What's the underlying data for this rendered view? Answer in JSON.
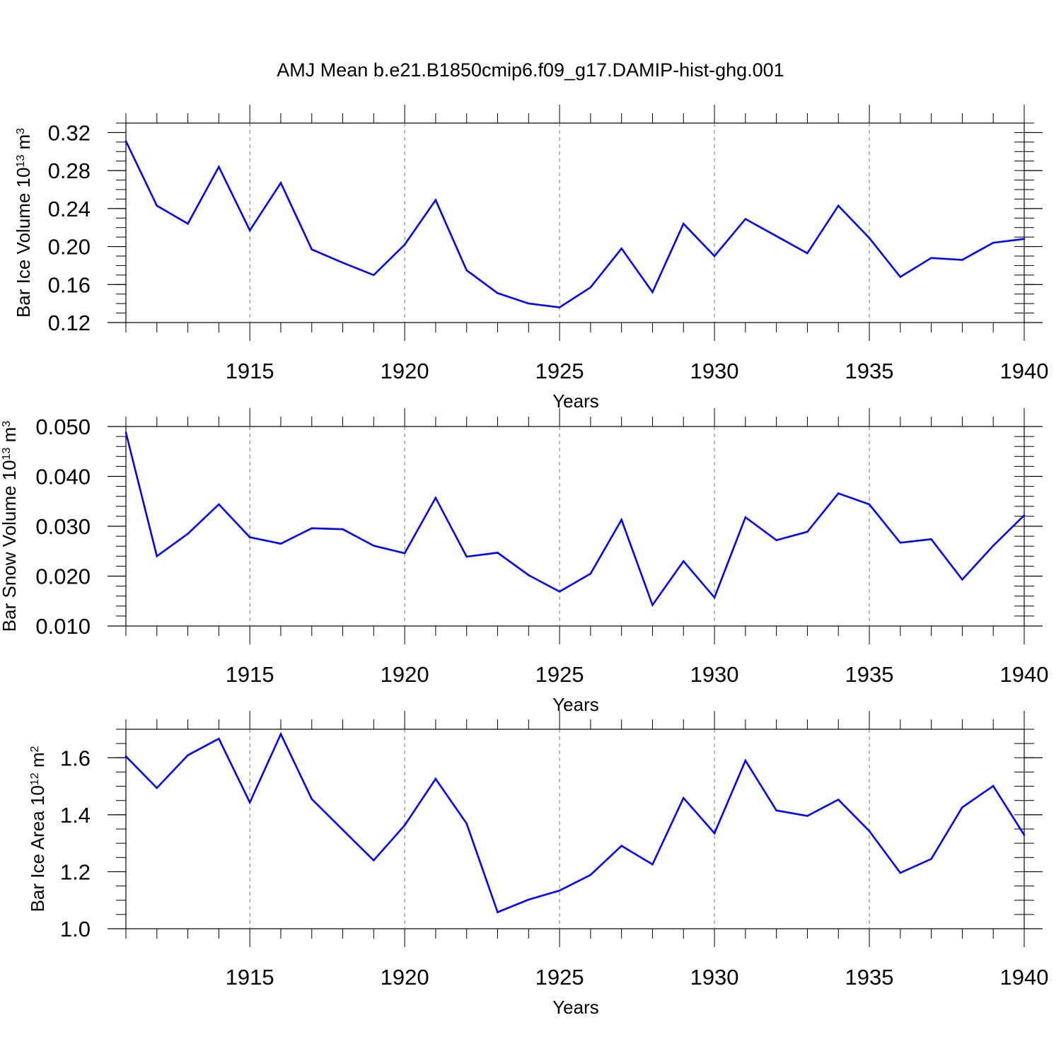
{
  "title": "AMJ Mean b.e21.B1850cmip6.f09_g17.DAMIP-hist-ghg.001",
  "line_color": "#0000ff",
  "chart_data": [
    {
      "type": "line",
      "xlabel": "Years",
      "ylabel": {
        "base": "Bar Ice Volume 10",
        "exp1": "13",
        "mid": " m",
        "exp2": "3"
      },
      "xlim": [
        1911,
        1940
      ],
      "ylim": [
        0.12,
        0.33
      ],
      "xticks": [
        1915,
        1920,
        1925,
        1930,
        1935,
        1940
      ],
      "xtick_labels": [
        "1915",
        "1920",
        "1925",
        "1930",
        "1935",
        "1940"
      ],
      "yticks": [
        0.12,
        0.16,
        0.2,
        0.24,
        0.28,
        0.32
      ],
      "ytick_labels": [
        "0.12",
        "0.16",
        "0.20",
        "0.24",
        "0.28",
        "0.32"
      ],
      "y_minor_step": 0.01,
      "grid": "dashed vertical at major x ticks",
      "x": [
        1911,
        1912,
        1913,
        1914,
        1915,
        1916,
        1917,
        1918,
        1919,
        1920,
        1921,
        1922,
        1923,
        1924,
        1925,
        1926,
        1927,
        1928,
        1929,
        1930,
        1931,
        1932,
        1933,
        1934,
        1935,
        1936,
        1937,
        1938,
        1939,
        1940
      ],
      "values": [
        0.311,
        0.243,
        0.224,
        0.284,
        0.217,
        0.267,
        0.197,
        0.183,
        0.17,
        0.202,
        0.249,
        0.175,
        0.151,
        0.14,
        0.136,
        0.157,
        0.198,
        0.152,
        0.224,
        0.19,
        0.229,
        0.211,
        0.193,
        0.243,
        0.209,
        0.168,
        0.188,
        0.186,
        0.204,
        0.208
      ]
    },
    {
      "type": "line",
      "xlabel": "Years",
      "ylabel": {
        "base": "Bar Snow Volume 10",
        "exp1": "13",
        "mid": " m",
        "exp2": "3"
      },
      "xlim": [
        1911,
        1940
      ],
      "ylim": [
        0.01,
        0.05
      ],
      "xticks": [
        1915,
        1920,
        1925,
        1930,
        1935,
        1940
      ],
      "xtick_labels": [
        "1915",
        "1920",
        "1925",
        "1930",
        "1935",
        "1940"
      ],
      "yticks": [
        0.01,
        0.02,
        0.03,
        0.04,
        0.05
      ],
      "ytick_labels": [
        "0.010",
        "0.020",
        "0.030",
        "0.040",
        "0.050"
      ],
      "y_minor_step": 0.002,
      "grid": "dashed vertical at major x ticks",
      "x": [
        1911,
        1912,
        1913,
        1914,
        1915,
        1916,
        1917,
        1918,
        1919,
        1920,
        1921,
        1922,
        1923,
        1924,
        1925,
        1926,
        1927,
        1928,
        1929,
        1930,
        1931,
        1932,
        1933,
        1934,
        1935,
        1936,
        1937,
        1938,
        1939,
        1940
      ],
      "values": [
        0.0488,
        0.024,
        0.0285,
        0.0344,
        0.0278,
        0.0265,
        0.0296,
        0.0294,
        0.0261,
        0.0246,
        0.0357,
        0.0239,
        0.0247,
        0.0202,
        0.0169,
        0.0205,
        0.0313,
        0.0142,
        0.023,
        0.0157,
        0.0318,
        0.0272,
        0.0289,
        0.0366,
        0.0344,
        0.0267,
        0.0274,
        0.0193,
        0.0261,
        0.0322
      ]
    },
    {
      "type": "line",
      "xlabel": "Years",
      "ylabel": {
        "base": "Bar Ice Area 10",
        "exp1": "12",
        "mid": " m",
        "exp2": "2"
      },
      "xlim": [
        1911,
        1940
      ],
      "ylim": [
        1.0,
        1.7
      ],
      "xticks": [
        1915,
        1920,
        1925,
        1930,
        1935,
        1940
      ],
      "xtick_labels": [
        "1915",
        "1920",
        "1925",
        "1930",
        "1935",
        "1940"
      ],
      "yticks": [
        1.0,
        1.2,
        1.4,
        1.6
      ],
      "ytick_labels": [
        "1.0",
        "1.2",
        "1.4",
        "1.6"
      ],
      "y_minor_step": 0.05,
      "grid": "dashed vertical at major x ticks",
      "x": [
        1911,
        1912,
        1913,
        1914,
        1915,
        1916,
        1917,
        1918,
        1919,
        1920,
        1921,
        1922,
        1923,
        1924,
        1925,
        1926,
        1927,
        1928,
        1929,
        1930,
        1931,
        1932,
        1933,
        1934,
        1935,
        1936,
        1937,
        1938,
        1939,
        1940
      ],
      "values": [
        1.605,
        1.494,
        1.609,
        1.667,
        1.443,
        1.683,
        1.455,
        1.347,
        1.24,
        1.363,
        1.526,
        1.369,
        1.058,
        1.102,
        1.134,
        1.189,
        1.291,
        1.226,
        1.459,
        1.335,
        1.59,
        1.415,
        1.396,
        1.453,
        1.343,
        1.196,
        1.245,
        1.426,
        1.501,
        1.329
      ]
    }
  ]
}
